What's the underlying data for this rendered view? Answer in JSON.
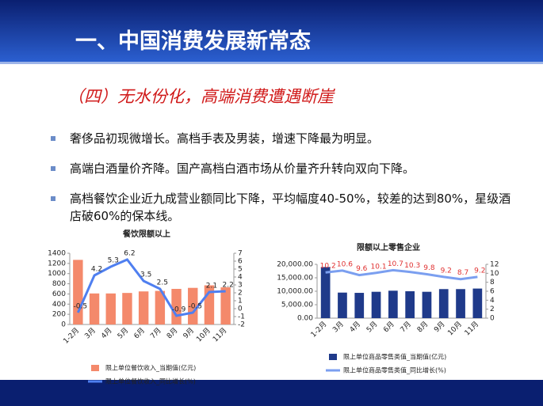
{
  "title": "一、中国消费发展新常态",
  "subtitle": "（四）无水份化，高端消费遭遇断崖",
  "bullets": [
    "奢侈品初现微增长。高档手表及男装，增速下降最为明显。",
    "高端白酒量价齐降。国产高档白酒市场从价量齐升转向双向下降。",
    "高档餐饮企业近九成营业额同比下降，平均幅度40-50%，较差的达到80%，星级酒店破60%的保本线。"
  ],
  "chart_data": [
    {
      "type": "bar-line",
      "title": "餐饮限额以上",
      "categories": [
        "1-2月",
        "3月",
        "4月",
        "5月",
        "6月",
        "7月",
        "8月",
        "9月",
        "10月",
        "11月"
      ],
      "series": [
        {
          "name": "限上单位餐饮收入_当期值(亿元)",
          "type": "bar",
          "color": "#f4896b",
          "values": [
            1270,
            610,
            610,
            620,
            650,
            660,
            700,
            720,
            770,
            730
          ]
        },
        {
          "name": "限上单位餐饮收入_同比增长(%)",
          "type": "line",
          "axis": "y2",
          "color": "#4f7ff0",
          "label_color": "#222222",
          "values": [
            -0.5,
            4.2,
            5.3,
            6.2,
            3.5,
            2.5,
            -0.9,
            -0.5,
            2.1,
            2.2
          ]
        }
      ],
      "ylim": [
        0,
        1400
      ],
      "yticks": [
        0,
        200,
        400,
        600,
        800,
        1000,
        1200,
        1400
      ],
      "y2lim": [
        -2,
        7
      ],
      "y2ticks": [
        -2,
        -1,
        0,
        1,
        2,
        3,
        4,
        5,
        6,
        7
      ]
    },
    {
      "type": "bar-line",
      "title": "限额以上零售企业",
      "categories": [
        "1-2月",
        "3月",
        "4月",
        "5月",
        "6月",
        "7月",
        "8月",
        "9月",
        "10月",
        "11月"
      ],
      "series": [
        {
          "name": "限上单位商品零售类值_当期值(亿元)",
          "type": "bar",
          "color": "#1f3a8a",
          "values": [
            19000,
            9500,
            9400,
            9800,
            10200,
            10000,
            9800,
            10800,
            10800,
            11000
          ]
        },
        {
          "name": "限上单位商品零售类值_同比增长(%)",
          "type": "line",
          "axis": "y2",
          "color": "#7b9ff0",
          "label_color": "#e03030",
          "values": [
            10.2,
            10.6,
            9.6,
            10.1,
            10.7,
            10.3,
            9.8,
            9.2,
            8.7,
            9.2
          ]
        }
      ],
      "ylim": [
        0,
        20000
      ],
      "yticks": [
        {
          "value": 0,
          "label": "0.00"
        },
        {
          "value": 5000,
          "label": "5,000.00"
        },
        {
          "value": 10000,
          "label": "10,000.00"
        },
        {
          "value": 15000,
          "label": "15,000.00"
        },
        {
          "value": 20000,
          "label": "20,000.00"
        }
      ],
      "y2lim": [
        0,
        12
      ],
      "y2ticks": [
        0,
        2,
        4,
        6,
        8,
        10,
        12
      ]
    }
  ]
}
